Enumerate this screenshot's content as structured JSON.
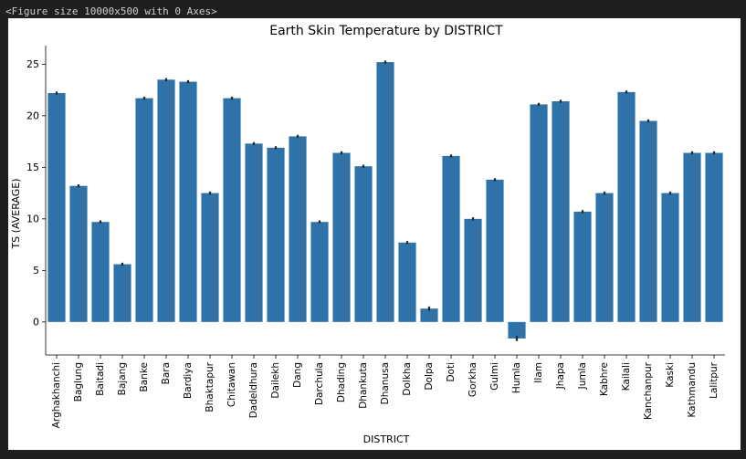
{
  "output": {
    "repr_text": "<Figure size 10000x500 with 0 Axes>"
  },
  "chart_data": {
    "type": "bar",
    "title": "Earth Skin Temperature by DISTRICT",
    "xlabel": "DISTRICT",
    "ylabel": "TS (AVERAGE)",
    "ylim": [
      -3.2,
      26.8
    ],
    "yticks": [
      0,
      5,
      10,
      15,
      20,
      25
    ],
    "grid": false,
    "bar_color": "#2e72a8",
    "error_bar_color": "#262626",
    "categories": [
      "Arghakhanchi",
      "Baglung",
      "Baitadi",
      "Bajang",
      "Banke",
      "Bara",
      "Bardiya",
      "Bhaktapur",
      "Chitawan",
      "Dadeldhura",
      "Dailekh",
      "Dang",
      "Darchula",
      "Dhading",
      "Dhankuta",
      "Dhanusa",
      "Dolkha",
      "Dolpa",
      "Doti",
      "Gorkha",
      "Gulmi",
      "Humla",
      "Ilam",
      "Jhapa",
      "Jumla",
      "Kabhre",
      "Kailali",
      "Kanchanpur",
      "Kaski",
      "Kathmandu",
      "Lalitpur"
    ],
    "values": [
      22.2,
      13.2,
      9.7,
      5.6,
      21.7,
      23.5,
      23.3,
      12.5,
      21.7,
      17.3,
      16.9,
      18.0,
      9.7,
      16.4,
      15.1,
      25.2,
      7.7,
      1.3,
      16.1,
      10.0,
      13.8,
      -1.6,
      21.1,
      21.4,
      10.7,
      12.5,
      22.3,
      19.5,
      12.5,
      16.4,
      16.4
    ],
    "error": [
      0.15,
      0.15,
      0.15,
      0.15,
      0.15,
      0.15,
      0.15,
      0.15,
      0.15,
      0.15,
      0.15,
      0.15,
      0.15,
      0.15,
      0.15,
      0.15,
      0.15,
      0.2,
      0.15,
      0.15,
      0.15,
      0.25,
      0.15,
      0.15,
      0.15,
      0.15,
      0.15,
      0.15,
      0.15,
      0.15,
      0.15
    ]
  }
}
